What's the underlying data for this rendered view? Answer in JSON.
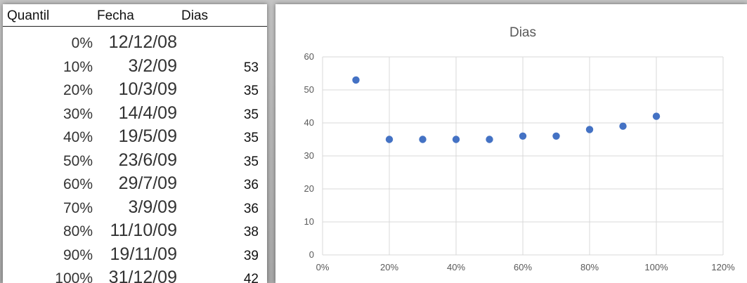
{
  "table": {
    "headers": [
      "Quantil",
      "Fecha",
      "Dias"
    ],
    "rows": [
      {
        "quantil": "0%",
        "fecha": "12/12/08",
        "dias": ""
      },
      {
        "quantil": "10%",
        "fecha": "3/2/09",
        "dias": "53"
      },
      {
        "quantil": "20%",
        "fecha": "10/3/09",
        "dias": "35"
      },
      {
        "quantil": "30%",
        "fecha": "14/4/09",
        "dias": "35"
      },
      {
        "quantil": "40%",
        "fecha": "19/5/09",
        "dias": "35"
      },
      {
        "quantil": "50%",
        "fecha": "23/6/09",
        "dias": "35"
      },
      {
        "quantil": "60%",
        "fecha": "29/7/09",
        "dias": "36"
      },
      {
        "quantil": "70%",
        "fecha": "3/9/09",
        "dias": "36"
      },
      {
        "quantil": "80%",
        "fecha": "11/10/09",
        "dias": "38"
      },
      {
        "quantil": "90%",
        "fecha": "19/11/09",
        "dias": "39"
      },
      {
        "quantil": "100%",
        "fecha": "31/12/09",
        "dias": "42"
      }
    ]
  },
  "chart_data": {
    "type": "scatter",
    "title": "Dias",
    "xlabel": "",
    "ylabel": "",
    "x": [
      0.1,
      0.2,
      0.3,
      0.4,
      0.5,
      0.6,
      0.7,
      0.8,
      0.9,
      1.0
    ],
    "y": [
      53,
      35,
      35,
      35,
      35,
      36,
      36,
      38,
      39,
      42
    ],
    "xlim": [
      0,
      1.2
    ],
    "ylim": [
      0,
      60
    ],
    "x_ticks": [
      "0%",
      "20%",
      "40%",
      "60%",
      "80%",
      "100%",
      "120%"
    ],
    "y_ticks": [
      "0",
      "10",
      "20",
      "30",
      "40",
      "50",
      "60"
    ],
    "grid": true,
    "legend": "none",
    "marker_color": "#4472c4",
    "grid_color": "#d9d9d9"
  }
}
